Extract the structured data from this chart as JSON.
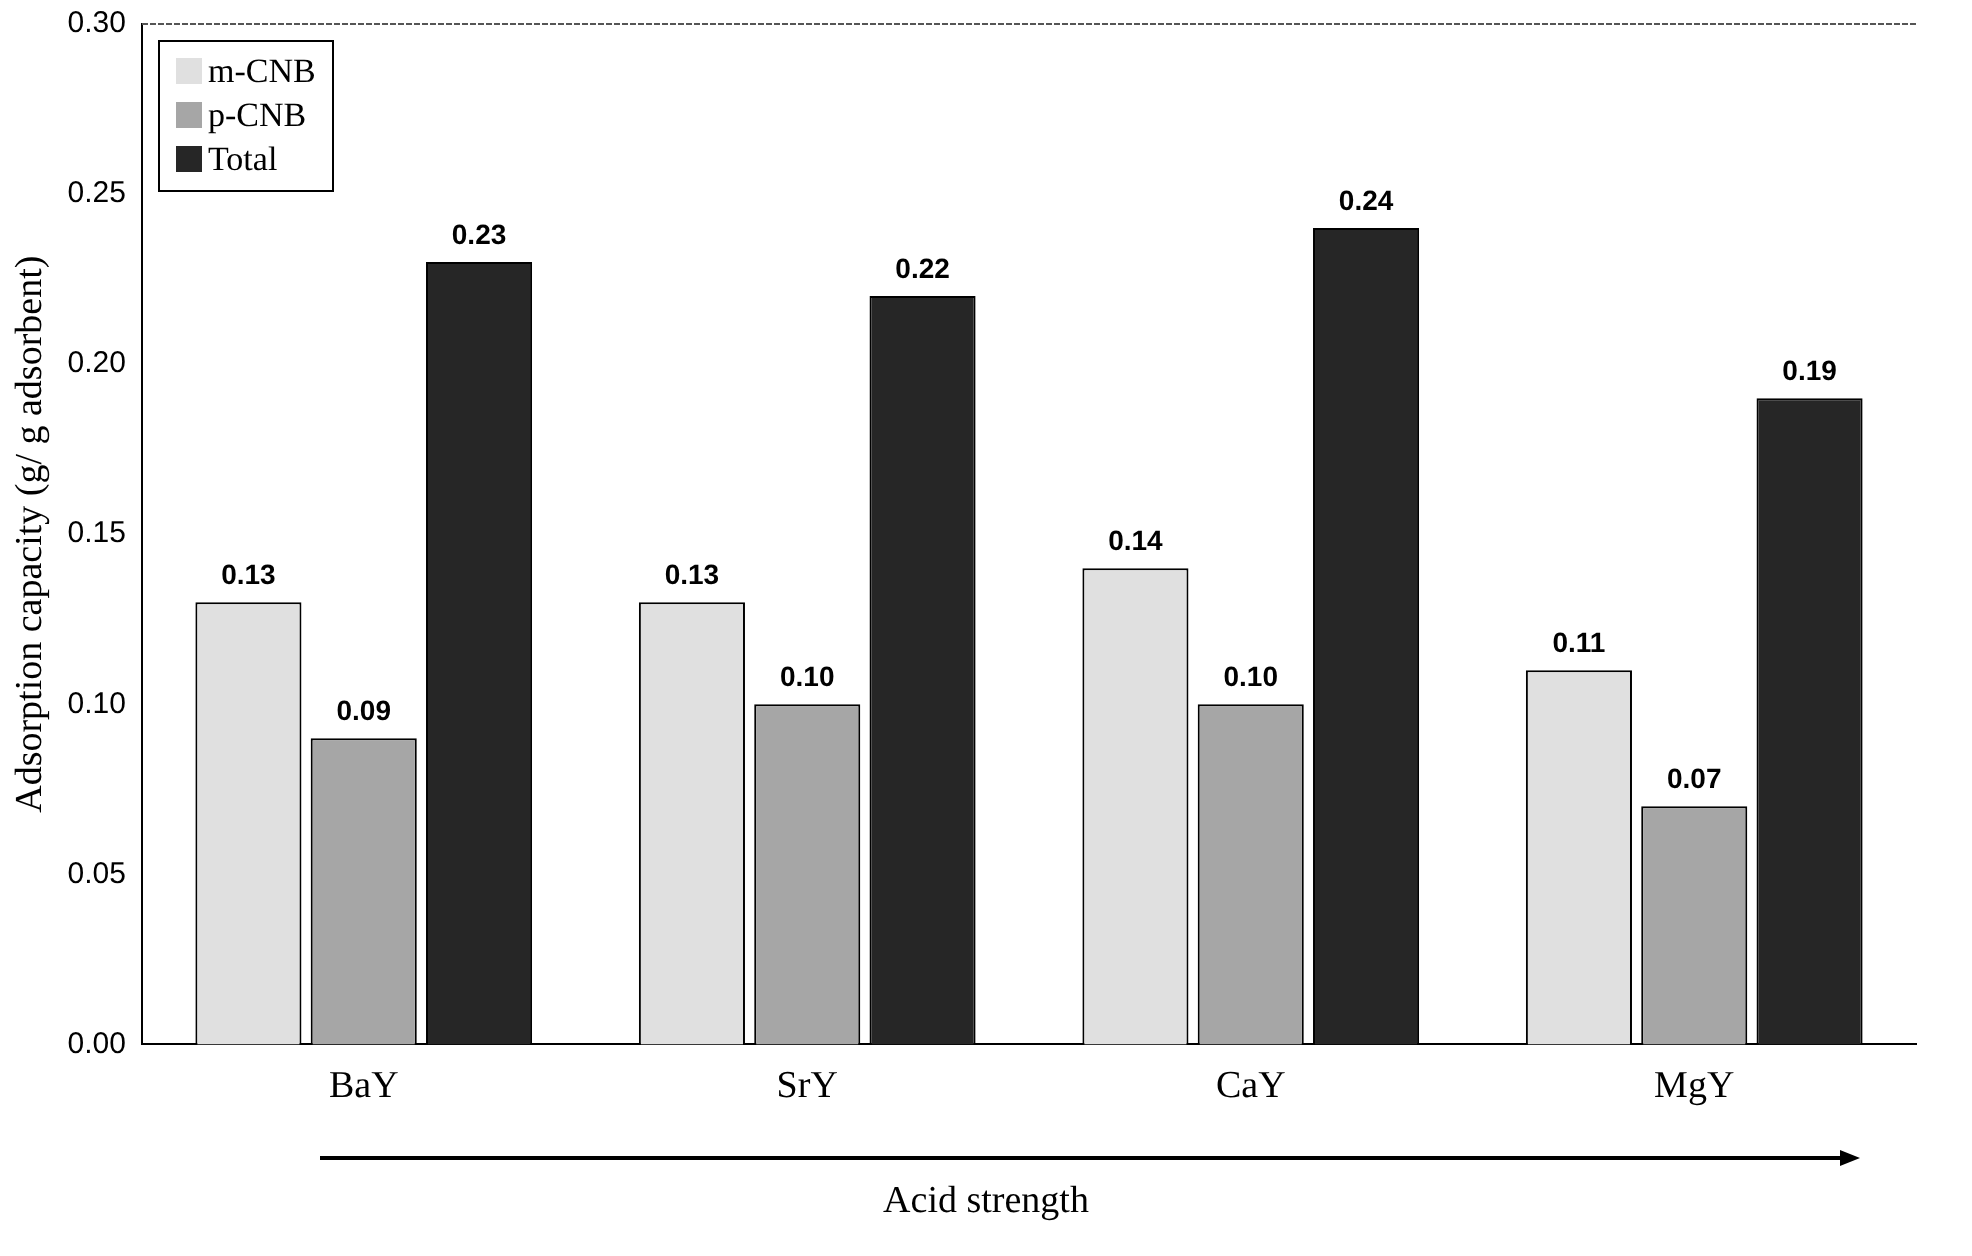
{
  "chart_data": {
    "type": "bar",
    "xlabel": "Acid strength",
    "ylabel": "Adsorption capacity (g/ g adsorbent)",
    "categories": [
      "BaY",
      "SrY",
      "CaY",
      "MgY"
    ],
    "series": [
      {
        "name": "m-CNB",
        "color": "#e0e0e0",
        "values": [
          0.13,
          0.13,
          0.14,
          0.11
        ],
        "value_labels": [
          "0.13",
          "0.13",
          "0.14",
          "0.11"
        ]
      },
      {
        "name": "p-CNB",
        "color": "#a6a6a6",
        "values": [
          0.09,
          0.1,
          0.1,
          0.07
        ],
        "value_labels": [
          "0.09",
          "0.10",
          "0.10",
          "0.07"
        ]
      },
      {
        "name": "Total",
        "color": "#262626",
        "values": [
          0.23,
          0.22,
          0.24,
          0.19
        ],
        "value_labels": [
          "0.23",
          "0.22",
          "0.24",
          "0.19"
        ]
      }
    ],
    "ylim": [
      0,
      0.3
    ],
    "yticks": [
      {
        "value": 0,
        "label": "0.00"
      },
      {
        "value": 0.05,
        "label": "0.05"
      },
      {
        "value": 0.1,
        "label": "0.10"
      },
      {
        "value": 0.15,
        "label": "0.15"
      },
      {
        "value": 0.2,
        "label": "0.20"
      },
      {
        "value": 0.25,
        "label": "0.25"
      },
      {
        "value": 0.3,
        "label": "0.30"
      }
    ],
    "legend": "top left",
    "grid": false
  }
}
